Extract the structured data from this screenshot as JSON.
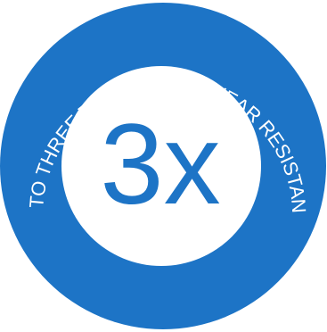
{
  "badge": {
    "arc_text": "UP TO THREE TIMES MORE WEAR RESISTANCE",
    "center_text": "3x",
    "colors": {
      "ring": "#1D74C6",
      "inner": "#FFFFFF",
      "arc_text": "#FFFFFF",
      "center_text": "#1D74C6"
    }
  }
}
